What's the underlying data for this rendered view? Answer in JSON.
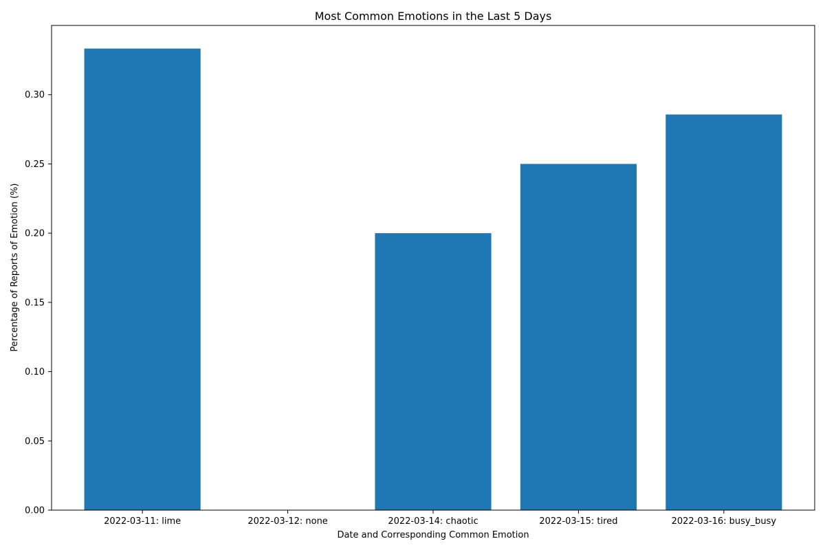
{
  "chart_data": {
    "type": "bar",
    "title": "Most Common Emotions in the Last 5 Days",
    "xlabel": "Date and Corresponding Common Emotion",
    "ylabel": "Percentage of Reports of Emotion (%)",
    "categories": [
      "2022-03-11: lime",
      "2022-03-12: none",
      "2022-03-14: chaotic",
      "2022-03-15: tired",
      "2022-03-16: busy_busy"
    ],
    "values": [
      0.3333,
      0.0,
      0.2,
      0.25,
      0.2857
    ],
    "ylim": [
      0,
      0.35
    ],
    "yticks": [
      "0.00",
      "0.05",
      "0.10",
      "0.15",
      "0.20",
      "0.25",
      "0.30"
    ],
    "grid": false,
    "legend": false,
    "colors": {
      "bar": "#1f77b4",
      "axis": "#000000",
      "background": "#ffffff"
    }
  }
}
